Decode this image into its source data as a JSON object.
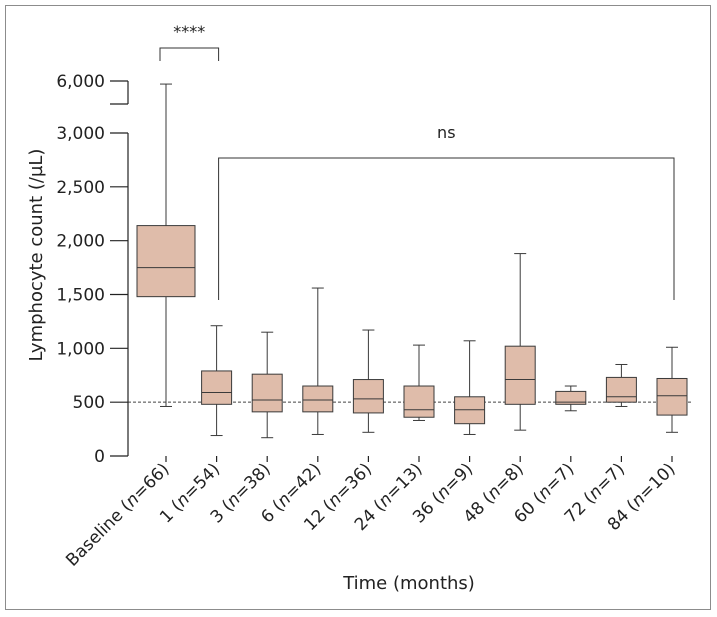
{
  "chart_data": {
    "type": "box",
    "xlabel": "Time (months)",
    "ylabel": "Lymphocyte count (/µL)",
    "y_axis": {
      "lower_segment": {
        "range": [
          0,
          3000
        ],
        "ticks": [
          0,
          500,
          1000,
          1500,
          2000,
          2500,
          3000
        ],
        "tick_labels": [
          "0",
          "500",
          "1,000",
          "1,500",
          "2,000",
          "2,500",
          "3,000"
        ]
      },
      "upper_segment": {
        "range": [
          4500,
          6000
        ],
        "ticks": [
          6000
        ],
        "tick_labels": [
          "6,000"
        ]
      },
      "axis_break": true
    },
    "reference_line": 500,
    "categories": [
      {
        "pre": "Baseline (",
        "n": "n",
        "post": "=66)"
      },
      {
        "pre": "1 (",
        "n": "n",
        "post": "=54)"
      },
      {
        "pre": "3 (",
        "n": "n",
        "post": "=38)"
      },
      {
        "pre": "6 (",
        "n": "n",
        "post": "=42)"
      },
      {
        "pre": "12 (",
        "n": "n",
        "post": "=36)"
      },
      {
        "pre": "24 (",
        "n": "n",
        "post": "=13)"
      },
      {
        "pre": "36 (",
        "n": "n",
        "post": "=9)"
      },
      {
        "pre": "48 (",
        "n": "n",
        "post": "=8)"
      },
      {
        "pre": "60 (",
        "n": "n",
        "post": "=7)"
      },
      {
        "pre": "72 (",
        "n": "n",
        "post": "=7)"
      },
      {
        "pre": "84 (",
        "n": "n",
        "post": "=10)"
      }
    ],
    "boxes": [
      {
        "min": 460,
        "q1": 1480,
        "median": 1750,
        "q3": 2140,
        "max": 5800
      },
      {
        "min": 190,
        "q1": 480,
        "median": 590,
        "q3": 790,
        "max": 1210
      },
      {
        "min": 170,
        "q1": 410,
        "median": 520,
        "q3": 760,
        "max": 1150
      },
      {
        "min": 200,
        "q1": 410,
        "median": 520,
        "q3": 650,
        "max": 1560
      },
      {
        "min": 220,
        "q1": 400,
        "median": 530,
        "q3": 710,
        "max": 1170
      },
      {
        "min": 330,
        "q1": 360,
        "median": 430,
        "q3": 650,
        "max": 1030
      },
      {
        "min": 200,
        "q1": 300,
        "median": 430,
        "q3": 550,
        "max": 1070
      },
      {
        "min": 240,
        "q1": 480,
        "median": 710,
        "q3": 1020,
        "max": 1880
      },
      {
        "min": 420,
        "q1": 480,
        "median": 500,
        "q3": 600,
        "max": 650
      },
      {
        "min": 460,
        "q1": 500,
        "median": 550,
        "q3": 730,
        "max": 850
      },
      {
        "min": 220,
        "q1": 380,
        "median": 560,
        "q3": 720,
        "max": 1010
      }
    ],
    "annotations": [
      {
        "text": "****",
        "from": 0,
        "to": 1
      },
      {
        "text": "ns",
        "from": 1,
        "to": 10
      }
    ]
  }
}
